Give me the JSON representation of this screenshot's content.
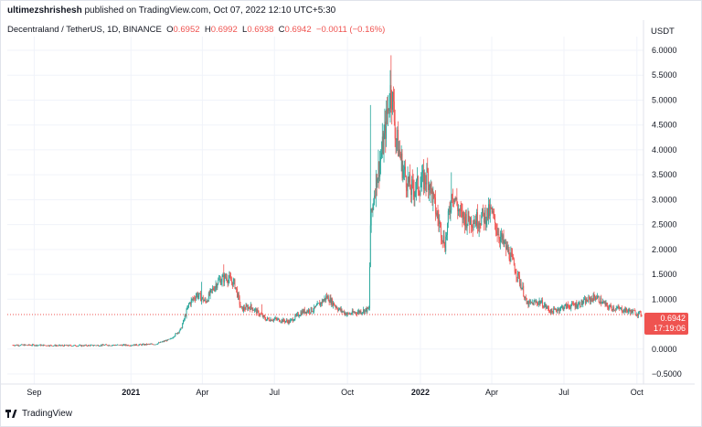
{
  "publisher_line": {
    "user": "ultimezshrishesh",
    "rest": " published on TradingView.com, Oct 07, 2022 12:10 UTC+5:30"
  },
  "legend": {
    "symbol": "Decentraland / TetherUS, 1D, BINANCE",
    "o_label": "O",
    "o": "0.6952",
    "h_label": "H",
    "h": "0.6992",
    "l_label": "L",
    "l": "0.6938",
    "c_label": "C",
    "c": "0.6942",
    "change": "−0.0011 (−0.16%)"
  },
  "axis_unit": "USDT",
  "price_badge": {
    "price": "0.6942",
    "countdown": "17:19:06"
  },
  "logo_text": "TradingView",
  "colors": {
    "up": "#26a69a",
    "down": "#ef5350",
    "grid": "#f0f3fa",
    "current_line": "#ef5350"
  },
  "chart_data": {
    "type": "candlestick",
    "ylim": [
      -0.5,
      6.0
    ],
    "y_ticks": [
      "6.0000",
      "5.5000",
      "5.0000",
      "4.5000",
      "4.0000",
      "3.5000",
      "3.0000",
      "2.5000",
      "2.0000",
      "1.5000",
      "1.0000",
      "0.0000",
      "−0.5000"
    ],
    "y_tick_values": [
      6.0,
      5.5,
      5.0,
      4.5,
      4.0,
      3.5,
      3.0,
      2.5,
      2.0,
      1.5,
      1.0,
      0.0,
      -0.5
    ],
    "x_ticks": [
      {
        "label": "Sep",
        "date": "2020-09-01",
        "bold": false
      },
      {
        "label": "2021",
        "date": "2021-01-01",
        "bold": true
      },
      {
        "label": "Apr",
        "date": "2021-04-01",
        "bold": false
      },
      {
        "label": "Jul",
        "date": "2021-07-01",
        "bold": false
      },
      {
        "label": "Oct",
        "date": "2021-10-01",
        "bold": false
      },
      {
        "label": "2022",
        "date": "2022-01-01",
        "bold": true
      },
      {
        "label": "Apr",
        "date": "2022-04-01",
        "bold": false
      },
      {
        "label": "Jul",
        "date": "2022-07-01",
        "bold": false
      },
      {
        "label": "Oct",
        "date": "2022-10-01",
        "bold": false
      }
    ],
    "current_price": 0.6942,
    "x_start": "2020-08-05",
    "x_end": "2022-10-07",
    "closes": [
      {
        "date": "2020-08-05",
        "value": 0.08
      },
      {
        "date": "2020-09-01",
        "value": 0.08
      },
      {
        "date": "2020-10-01",
        "value": 0.07
      },
      {
        "date": "2020-11-01",
        "value": 0.07
      },
      {
        "date": "2020-12-01",
        "value": 0.08
      },
      {
        "date": "2021-01-01",
        "value": 0.08
      },
      {
        "date": "2021-02-01",
        "value": 0.1
      },
      {
        "date": "2021-02-20",
        "value": 0.2
      },
      {
        "date": "2021-03-05",
        "value": 0.4
      },
      {
        "date": "2021-03-15",
        "value": 0.9
      },
      {
        "date": "2021-03-25",
        "value": 1.1
      },
      {
        "date": "2021-04-05",
        "value": 0.95
      },
      {
        "date": "2021-04-20",
        "value": 1.35
      },
      {
        "date": "2021-05-01",
        "value": 1.45
      },
      {
        "date": "2021-05-12",
        "value": 1.3
      },
      {
        "date": "2021-05-20",
        "value": 0.8
      },
      {
        "date": "2021-06-01",
        "value": 0.85
      },
      {
        "date": "2021-06-20",
        "value": 0.6
      },
      {
        "date": "2021-07-01",
        "value": 0.6
      },
      {
        "date": "2021-07-20",
        "value": 0.55
      },
      {
        "date": "2021-08-05",
        "value": 0.75
      },
      {
        "date": "2021-08-20",
        "value": 0.8
      },
      {
        "date": "2021-09-05",
        "value": 1.05
      },
      {
        "date": "2021-09-20",
        "value": 0.8
      },
      {
        "date": "2021-10-01",
        "value": 0.7
      },
      {
        "date": "2021-10-15",
        "value": 0.75
      },
      {
        "date": "2021-10-28",
        "value": 0.8
      },
      {
        "date": "2021-10-30",
        "value": 2.5
      },
      {
        "date": "2021-11-05",
        "value": 3.3
      },
      {
        "date": "2021-11-15",
        "value": 4.1
      },
      {
        "date": "2021-11-25",
        "value": 5.3
      },
      {
        "date": "2021-12-01",
        "value": 4.3
      },
      {
        "date": "2021-12-10",
        "value": 3.6
      },
      {
        "date": "2021-12-20",
        "value": 3.2
      },
      {
        "date": "2022-01-01",
        "value": 3.3
      },
      {
        "date": "2022-01-10",
        "value": 3.5
      },
      {
        "date": "2022-01-20",
        "value": 2.8
      },
      {
        "date": "2022-02-01",
        "value": 2.1
      },
      {
        "date": "2022-02-10",
        "value": 3.2
      },
      {
        "date": "2022-02-20",
        "value": 2.7
      },
      {
        "date": "2022-03-01",
        "value": 2.6
      },
      {
        "date": "2022-03-15",
        "value": 2.6
      },
      {
        "date": "2022-03-31",
        "value": 2.75
      },
      {
        "date": "2022-04-10",
        "value": 2.3
      },
      {
        "date": "2022-04-25",
        "value": 1.85
      },
      {
        "date": "2022-05-10",
        "value": 1.2
      },
      {
        "date": "2022-05-15",
        "value": 0.9
      },
      {
        "date": "2022-06-01",
        "value": 0.95
      },
      {
        "date": "2022-06-15",
        "value": 0.75
      },
      {
        "date": "2022-07-01",
        "value": 0.85
      },
      {
        "date": "2022-07-20",
        "value": 0.9
      },
      {
        "date": "2022-08-10",
        "value": 1.05
      },
      {
        "date": "2022-08-25",
        "value": 0.85
      },
      {
        "date": "2022-09-10",
        "value": 0.8
      },
      {
        "date": "2022-09-25",
        "value": 0.75
      },
      {
        "date": "2022-10-07",
        "value": 0.6942
      }
    ]
  }
}
